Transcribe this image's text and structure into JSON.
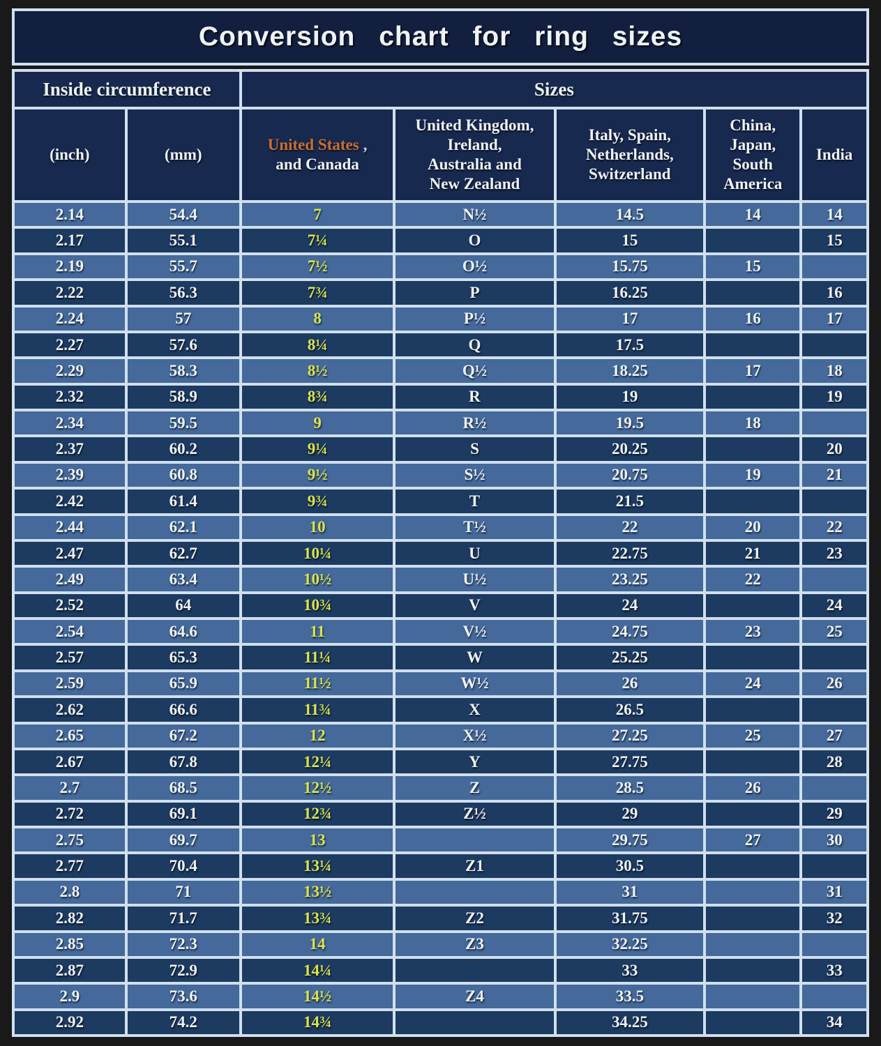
{
  "title": "Conversion chart for ring sizes",
  "colors": {
    "border_light": "#cfe0f0",
    "title_bg": "#121f3e",
    "header_bg": "#17294e",
    "row_light": "#44699a",
    "row_dark": "#1d3a60",
    "us_yellow": "#d9e44c",
    "accent_orange": "#c96f31",
    "text_white": "#eef3fa",
    "frame_black": "#191919"
  },
  "chart_data": {
    "type": "table",
    "title": "Conversion chart for ring sizes",
    "group_headers": [
      {
        "label": "Inside circumference",
        "colspan": 2
      },
      {
        "label": "Sizes",
        "colspan": 5
      }
    ],
    "columns": [
      "(inch)",
      "(mm)",
      "United States , and Canada",
      "United Kingdom,\nIreland,\nAustralia and\nNew Zealand",
      "Italy,  Spain,\nNetherlands,\nSwitzerland",
      "China,\nJapan,\nSouth\nAmerica",
      "India"
    ],
    "us_header": {
      "highlight": "United States",
      "suffix": ",",
      "line2": "and Canada"
    },
    "rows": [
      [
        "2.14",
        "54.4",
        "7",
        "N½",
        "14.5",
        "14",
        "14"
      ],
      [
        "2.17",
        "55.1",
        "7¼",
        "O",
        "15",
        "",
        "15"
      ],
      [
        "2.19",
        "55.7",
        "7½",
        "O½",
        "15.75",
        "15",
        ""
      ],
      [
        "2.22",
        "56.3",
        "7¾",
        "P",
        "16.25",
        "",
        "16"
      ],
      [
        "2.24",
        "57",
        "8",
        "P½",
        "17",
        "16",
        "17"
      ],
      [
        "2.27",
        "57.6",
        "8¼",
        "Q",
        "17.5",
        "",
        ""
      ],
      [
        "2.29",
        "58.3",
        "8½",
        "Q½",
        "18.25",
        "17",
        "18"
      ],
      [
        "2.32",
        "58.9",
        "8¾",
        "R",
        "19",
        "",
        "19"
      ],
      [
        "2.34",
        "59.5",
        "9",
        "R½",
        "19.5",
        "18",
        ""
      ],
      [
        "2.37",
        "60.2",
        "9¼",
        "S",
        "20.25",
        "",
        "20"
      ],
      [
        "2.39",
        "60.8",
        "9½",
        "S½",
        "20.75",
        "19",
        "21"
      ],
      [
        "2.42",
        "61.4",
        "9¾",
        "T",
        "21.5",
        "",
        ""
      ],
      [
        "2.44",
        "62.1",
        "10",
        "T½",
        "22",
        "20",
        "22"
      ],
      [
        "2.47",
        "62.7",
        "10¼",
        "U",
        "22.75",
        "21",
        "23"
      ],
      [
        "2.49",
        "63.4",
        "10½",
        "U½",
        "23.25",
        "22",
        ""
      ],
      [
        "2.52",
        "64",
        "10¾",
        "V",
        "24",
        "",
        "24"
      ],
      [
        "2.54",
        "64.6",
        "11",
        "V½",
        "24.75",
        "23",
        "25"
      ],
      [
        "2.57",
        "65.3",
        "11¼",
        "W",
        "25.25",
        "",
        ""
      ],
      [
        "2.59",
        "65.9",
        "11½",
        "W½",
        "26",
        "24",
        "26"
      ],
      [
        "2.62",
        "66.6",
        "11¾",
        "X",
        "26.5",
        "",
        ""
      ],
      [
        "2.65",
        "67.2",
        "12",
        "X½",
        "27.25",
        "25",
        "27"
      ],
      [
        "2.67",
        "67.8",
        "12¼",
        "Y",
        "27.75",
        "",
        "28"
      ],
      [
        "2.7",
        "68.5",
        "12½",
        "Z",
        "28.5",
        "26",
        ""
      ],
      [
        "2.72",
        "69.1",
        "12¾",
        "Z½",
        "29",
        "",
        "29"
      ],
      [
        "2.75",
        "69.7",
        "13",
        "",
        "29.75",
        "27",
        "30"
      ],
      [
        "2.77",
        "70.4",
        "13¼",
        "Z1",
        "30.5",
        "",
        ""
      ],
      [
        "2.8",
        "71",
        "13½",
        "",
        "31",
        "",
        "31"
      ],
      [
        "2.82",
        "71.7",
        "13¾",
        "Z2",
        "31.75",
        "",
        "32"
      ],
      [
        "2.85",
        "72.3",
        "14",
        "Z3",
        "32.25",
        "",
        ""
      ],
      [
        "2.87",
        "72.9",
        "14¼",
        "",
        "33",
        "",
        "33"
      ],
      [
        "2.9",
        "73.6",
        "14½",
        "Z4",
        "33.5",
        "",
        ""
      ],
      [
        "2.92",
        "74.2",
        "14¾",
        "",
        "34.25",
        "",
        "34"
      ]
    ]
  }
}
